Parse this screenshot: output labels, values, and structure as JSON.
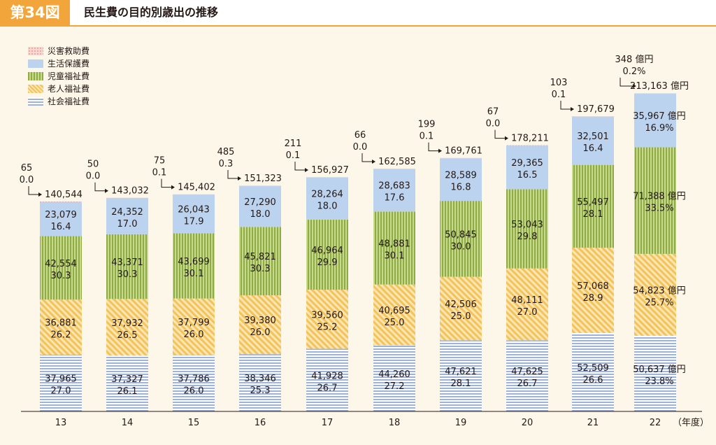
{
  "header": {
    "figure_label": "第34図",
    "title": "民生費の目的別歳出の推移"
  },
  "colors": {
    "header_accent": "#f2a53a",
    "disaster": "#f3b8b0",
    "livelihood": "#bcd3ef",
    "child": "#a8c25c",
    "elderly": "#f7d27c",
    "social": "#9db3d9"
  },
  "chart_data": {
    "type": "bar",
    "stacked": true,
    "unit": "億円",
    "xlabel": "（年度）",
    "categories": [
      "13",
      "14",
      "15",
      "16",
      "17",
      "18",
      "19",
      "20",
      "21",
      "22"
    ],
    "totals": [
      "140,544",
      "143,032",
      "145,402",
      "151,323",
      "156,927",
      "162,585",
      "169,761",
      "178,211",
      "197,679",
      "213,163 億円"
    ],
    "totals_values": [
      140544,
      143032,
      145402,
      151323,
      156927,
      162585,
      169761,
      178211,
      197679,
      213163
    ],
    "series": [
      {
        "name": "社会福祉費",
        "values": [
          37965,
          37327,
          37786,
          38346,
          41928,
          44260,
          47621,
          47625,
          52509,
          50637
        ],
        "labels": [
          "37,965",
          "37,327",
          "37,786",
          "38,346",
          "41,928",
          "44,260",
          "47,621",
          "47,625",
          "52,509",
          "50,637 億円"
        ],
        "shares": [
          "27.0",
          "26.1",
          "26.0",
          "25.3",
          "26.7",
          "27.2",
          "28.1",
          "26.7",
          "26.6",
          "23.8%"
        ]
      },
      {
        "name": "老人福祉費",
        "values": [
          36881,
          37932,
          37799,
          39380,
          39560,
          40695,
          42506,
          48111,
          57068,
          54823
        ],
        "labels": [
          "36,881",
          "37,932",
          "37,799",
          "39,380",
          "39,560",
          "40,695",
          "42,506",
          "48,111",
          "57,068",
          "54,823 億円"
        ],
        "shares": [
          "26.2",
          "26.5",
          "26.0",
          "26.0",
          "25.2",
          "25.0",
          "25.0",
          "27.0",
          "28.9",
          "25.7%"
        ]
      },
      {
        "name": "児童福祉費",
        "values": [
          42554,
          43371,
          43699,
          45821,
          46964,
          48881,
          50845,
          53043,
          55497,
          71388
        ],
        "labels": [
          "42,554",
          "43,371",
          "43,699",
          "45,821",
          "46,964",
          "48,881",
          "50,845",
          "53,043",
          "55,497",
          "71,388 億円"
        ],
        "shares": [
          "30.3",
          "30.3",
          "30.1",
          "30.3",
          "29.9",
          "30.1",
          "30.0",
          "29.8",
          "28.1",
          "33.5%"
        ]
      },
      {
        "name": "生活保護費",
        "values": [
          23079,
          24352,
          26043,
          27290,
          28264,
          28683,
          28589,
          29365,
          32501,
          35967
        ],
        "labels": [
          "23,079",
          "24,352",
          "26,043",
          "27,290",
          "28,264",
          "28,683",
          "28,589",
          "29,365",
          "32,501",
          "35,967 億円"
        ],
        "shares": [
          "16.4",
          "17.0",
          "17.9",
          "18.0",
          "18.0",
          "17.6",
          "16.8",
          "16.5",
          "16.4",
          "16.9%"
        ]
      },
      {
        "name": "災害救助費",
        "values": [
          65,
          50,
          75,
          485,
          211,
          66,
          199,
          67,
          103,
          348
        ],
        "labels": [
          "65",
          "50",
          "75",
          "485",
          "211",
          "66",
          "199",
          "67",
          "103",
          "348 億円"
        ],
        "shares": [
          "0.0",
          "0.0",
          "0.1",
          "0.3",
          "0.1",
          "0.0",
          "0.1",
          "0.0",
          "0.1",
          "0.2%"
        ]
      }
    ],
    "legend_order": [
      "災害救助費",
      "生活保護費",
      "児童福祉費",
      "老人福祉費",
      "社会福祉費"
    ],
    "legend_position": "top-left",
    "grid": false
  }
}
